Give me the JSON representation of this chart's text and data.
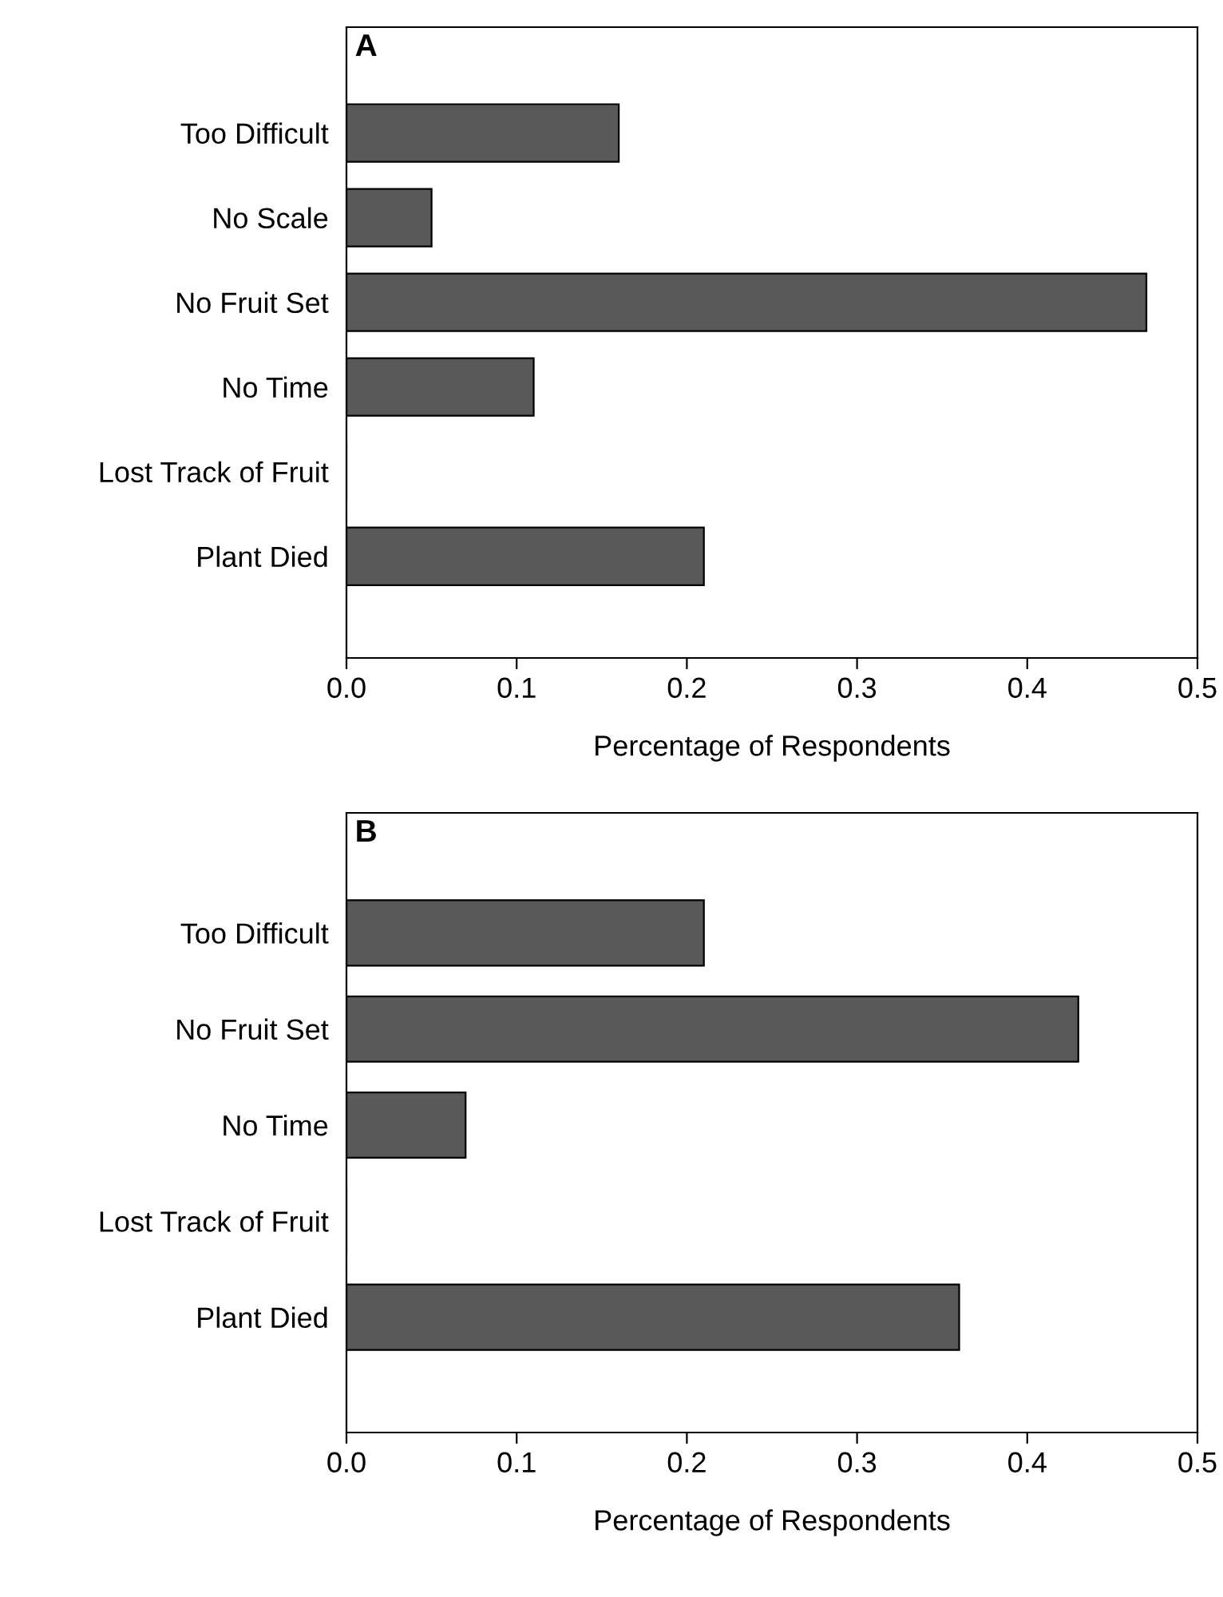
{
  "chart_data": [
    {
      "type": "bar",
      "orientation": "horizontal",
      "title": "A",
      "xlabel": "Percentage of Respondents",
      "categories": [
        "Too Difficult",
        "No Scale",
        "No Fruit Set",
        "No Time",
        "Lost Track of Fruit",
        "Plant Died"
      ],
      "values": [
        0.16,
        0.05,
        0.47,
        0.11,
        0,
        0.21
      ],
      "color": "#595959",
      "xlim": [
        0,
        0.5
      ],
      "xticks": [
        {
          "value": 0,
          "label": "0.0"
        },
        0.1,
        0.2,
        0.3,
        0.4,
        0.5
      ],
      "grid": false,
      "legend": false
    },
    {
      "type": "bar",
      "orientation": "horizontal",
      "title": "B",
      "xlabel": "Percentage of Respondents",
      "categories": [
        "Too Difficult",
        "No Fruit Set",
        "No Time",
        "Lost Track of Fruit",
        "Plant Died"
      ],
      "values": [
        0.21,
        0.43,
        0.07,
        0,
        0.36
      ],
      "color": "#595959",
      "xlim": [
        0,
        0.5
      ],
      "xticks": [
        {
          "value": 0,
          "label": "0.0"
        },
        0.1,
        0.2,
        0.3,
        0.4,
        0.5
      ],
      "grid": false,
      "legend": false
    }
  ]
}
